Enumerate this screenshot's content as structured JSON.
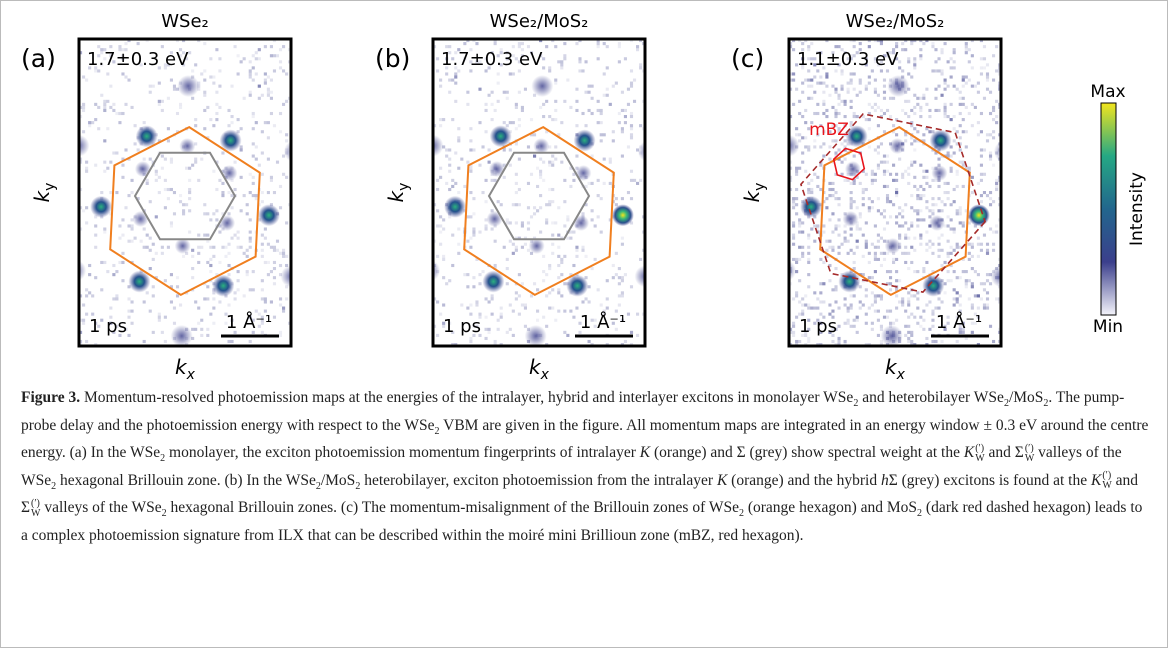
{
  "panels": [
    {
      "letter": "(a)",
      "title": "WSe₂",
      "energy": "1.7±0.3 eV",
      "delay": "1 ps",
      "scale": "1 Å⁻¹",
      "x_label": {
        "base": "k",
        "sub": "x"
      },
      "y_label": {
        "base": "k",
        "sub": "y"
      }
    },
    {
      "letter": "(b)",
      "title": "WSe₂/MoS₂",
      "energy": "1.7±0.3 eV",
      "delay": "1 ps",
      "scale": "1 Å⁻¹",
      "x_label": {
        "base": "k",
        "sub": "x"
      },
      "y_label": {
        "base": "k",
        "sub": "y"
      }
    },
    {
      "letter": "(c)",
      "title": "WSe₂/MoS₂",
      "energy": "1.1±0.3 eV",
      "delay": "1 ps",
      "scale": "1 Å⁻¹",
      "x_label": {
        "base": "k",
        "sub": "x"
      },
      "y_label": {
        "base": "k",
        "sub": "y"
      },
      "annotation": "mBZ"
    }
  ],
  "colorbar": {
    "max": "Max",
    "min": "Min",
    "label": "Intensity"
  },
  "caption": [
    {
      "b": "Figure 3."
    },
    " Momentum-resolved photoemission maps at the energies of the intralayer, hybrid and interlayer excitons in monolayer WSe",
    {
      "sub": "2"
    },
    " and heterobilayer WSe",
    {
      "sub": "2"
    },
    "/MoS",
    {
      "sub": "2"
    },
    ". The pump-probe delay and the photoemission energy with respect to the WSe",
    {
      "sub": "2"
    },
    " VBM are given in the figure. All momentum maps are integrated in an energy window ± 0.3 eV around the centre energy. (a) In the WSe",
    {
      "sub": "2"
    },
    " monolayer, the exciton photoemission momentum fingerprints of intralayer ",
    {
      "i": "K"
    },
    " (orange) and Σ (grey) show spectral weight at the ",
    {
      "i": "K"
    },
    {
      "sub": "W",
      "sup": "(′)"
    },
    " and Σ",
    {
      "sub": "W",
      "sup": "(′)"
    },
    " valleys of the WSe",
    {
      "sub": "2"
    },
    " hexagonal Brillouin zone. (b) In the WSe",
    {
      "sub": "2"
    },
    "/MoS",
    {
      "sub": "2"
    },
    " heterobilayer, exciton photoemission from the intralayer ",
    {
      "i": "K"
    },
    " (orange) and the hybrid ",
    {
      "i": "h"
    },
    "Σ (grey) excitons is found at the ",
    {
      "i": "K"
    },
    {
      "sub": "W",
      "sup": "(′)"
    },
    " and Σ",
    {
      "sub": "W",
      "sup": "(′)"
    },
    " valleys of the WSe",
    {
      "sub": "2"
    },
    " hexagonal Brillouin zones. (c) The momentum-misalignment of the Brillouin zones of WSe",
    {
      "sub": "2"
    },
    " (orange hexagon) and MoS",
    {
      "sub": "2"
    },
    " (dark red dashed hexagon) leads to a complex photoemission signature from ILX that can be described within the moiré mini Brillioun zone (mBZ, red hexagon)."
  ]
}
